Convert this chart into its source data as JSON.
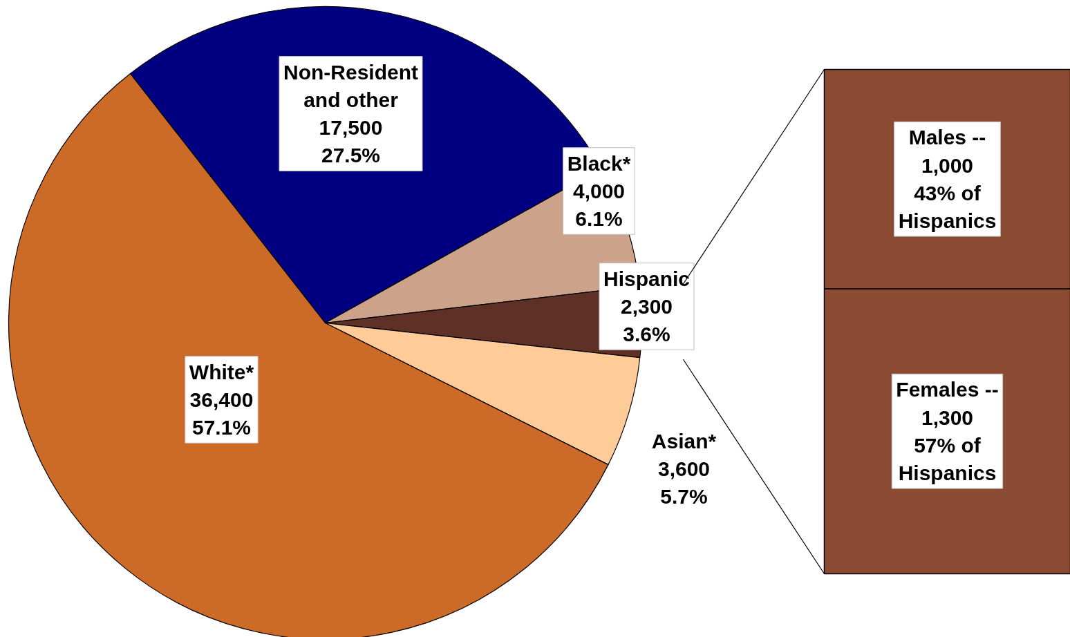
{
  "chart_data": [
    {
      "type": "pie",
      "categories": [
        "Non-Resident\nand other",
        "Black*",
        "Hispanic",
        "Asian*",
        "White*"
      ],
      "values": [
        17500,
        4000,
        2300,
        3600,
        36400
      ],
      "colors": [
        "#000080",
        "#cca28a",
        "#5e3026",
        "#ffcc99",
        "#cc6a28"
      ],
      "value_labels": [
        "17,500\n27.5%",
        "4,000\n6.1%",
        "2,300\n3.6%",
        "3,600\n5.7%",
        "36,400\n57.1%"
      ]
    },
    {
      "type": "bar",
      "stacked": true,
      "categories": [
        null
      ],
      "series": [
        {
          "name": "Females --",
          "color": "#8b4a32",
          "values": [
            1300
          ],
          "value_labels": [
            "1,300\n57% of\nHispanics"
          ]
        },
        {
          "name": "Males --",
          "color": "#8b4a32",
          "values": [
            1000
          ],
          "value_labels": [
            "1,000\n43% of\nHispanics"
          ]
        }
      ],
      "data_labels": true
    }
  ]
}
